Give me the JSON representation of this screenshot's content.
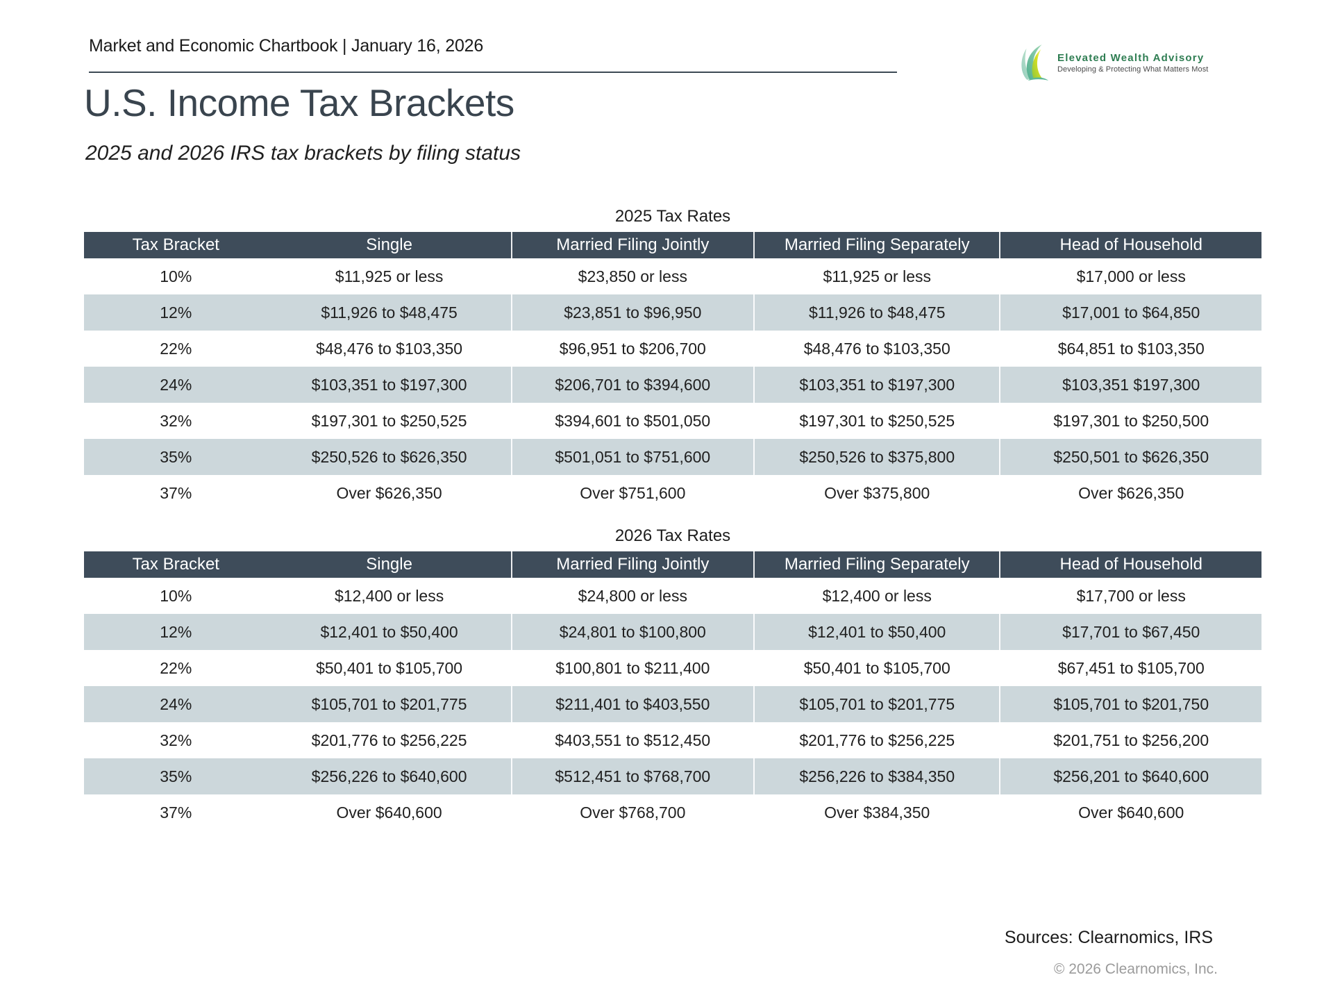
{
  "header": {
    "chartbook_title": "Market and Economic Chartbook | January 16, 2026"
  },
  "logo": {
    "name": "Elevated Wealth Advisory",
    "tagline": "Developing & Protecting What Matters Most"
  },
  "page": {
    "title": "U.S. Income Tax Brackets",
    "subtitle": "2025 and 2026 IRS tax brackets by filing status"
  },
  "footer": {
    "sources": "Sources: Clearnomics, IRS",
    "copyright": "© 2026 Clearnomics, Inc."
  },
  "icons": {
    "logo": "leaf-swoosh-icon"
  },
  "colors": {
    "table_header_bg": "#3e4c5a",
    "row_stripe": "#ccd7db",
    "title_text": "#39444e",
    "rule": "#3c4954",
    "logo_green": "#2e7d52",
    "copyright_gray": "#9b9b9b"
  },
  "chart_data": [
    {
      "type": "table",
      "title": "2025 Tax Rates",
      "columns": [
        "Tax Bracket",
        "Single",
        "Married Filing Jointly",
        "Married Filing Separately",
        "Head of Household"
      ],
      "rows": [
        [
          "10%",
          "$11,925 or less",
          "$23,850 or less",
          "$11,925 or less",
          "$17,000 or less"
        ],
        [
          "12%",
          "$11,926 to $48,475",
          "$23,851 to $96,950",
          "$11,926 to $48,475",
          "$17,001 to $64,850"
        ],
        [
          "22%",
          "$48,476 to $103,350",
          "$96,951 to $206,700",
          "$48,476 to $103,350",
          "$64,851 to $103,350"
        ],
        [
          "24%",
          "$103,351 to $197,300",
          "$206,701 to $394,600",
          "$103,351 to $197,300",
          "$103,351 $197,300"
        ],
        [
          "32%",
          "$197,301 to $250,525",
          "$394,601 to $501,050",
          "$197,301 to $250,525",
          "$197,301 to $250,500"
        ],
        [
          "35%",
          "$250,526 to $626,350",
          "$501,051 to $751,600",
          "$250,526 to $375,800",
          "$250,501 to $626,350"
        ],
        [
          "37%",
          "Over $626,350",
          "Over $751,600",
          "Over $375,800",
          "Over $626,350"
        ]
      ]
    },
    {
      "type": "table",
      "title": "2026 Tax Rates",
      "columns": [
        "Tax Bracket",
        "Single",
        "Married Filing Jointly",
        "Married Filing Separately",
        "Head of Household"
      ],
      "rows": [
        [
          "10%",
          "$12,400 or less",
          "$24,800 or less",
          "$12,400 or less",
          "$17,700 or less"
        ],
        [
          "12%",
          "$12,401 to $50,400",
          "$24,801 to $100,800",
          "$12,401 to $50,400",
          "$17,701 to $67,450"
        ],
        [
          "22%",
          "$50,401 to $105,700",
          "$100,801 to $211,400",
          "$50,401 to $105,700",
          "$67,451 to $105,700"
        ],
        [
          "24%",
          "$105,701 to $201,775",
          "$211,401 to $403,550",
          "$105,701 to $201,775",
          "$105,701 to $201,750"
        ],
        [
          "32%",
          "$201,776 to $256,225",
          "$403,551 to $512,450",
          "$201,776 to $256,225",
          "$201,751 to $256,200"
        ],
        [
          "35%",
          "$256,226 to $640,600",
          "$512,451 to $768,700",
          "$256,226 to $384,350",
          "$256,201 to $640,600"
        ],
        [
          "37%",
          "Over $640,600",
          "Over $768,700",
          "Over $384,350",
          "Over $640,600"
        ]
      ]
    }
  ]
}
